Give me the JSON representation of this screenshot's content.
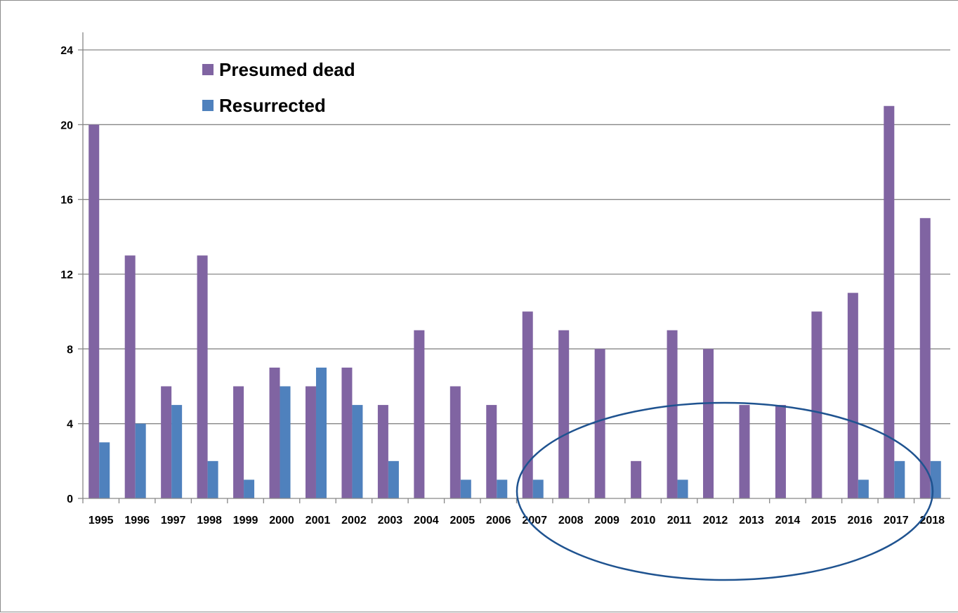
{
  "chart_data": {
    "type": "bar",
    "categories": [
      "1995",
      "1996",
      "1997",
      "1998",
      "1999",
      "2000",
      "2001",
      "2002",
      "2003",
      "2004",
      "2005",
      "2006",
      "2007",
      "2008",
      "2009",
      "2010",
      "2011",
      "2012",
      "2013",
      "2014",
      "2015",
      "2016",
      "2017",
      "2018"
    ],
    "series": [
      {
        "name": "Presumed dead",
        "color": "#8064a2",
        "values": [
          20,
          13,
          6,
          13,
          6,
          7,
          6,
          7,
          5,
          9,
          6,
          5,
          10,
          9,
          8,
          2,
          9,
          8,
          5,
          5,
          10,
          11,
          21,
          15
        ]
      },
      {
        "name": "Resurrected",
        "color": "#4f81bd",
        "values": [
          3,
          4,
          5,
          2,
          1,
          6,
          7,
          5,
          2,
          0,
          1,
          1,
          1,
          0,
          0,
          0,
          1,
          0,
          0,
          0,
          0,
          1,
          2,
          2
        ]
      }
    ],
    "ylim": [
      0,
      24
    ],
    "yticks": [
      "0",
      "4",
      "8",
      "12",
      "16",
      "20",
      "24"
    ],
    "grid": true,
    "legend_position": "top-left",
    "annotation": {
      "shape": "ellipse",
      "highlights": "2007-2017",
      "color": "#1f5390"
    }
  }
}
